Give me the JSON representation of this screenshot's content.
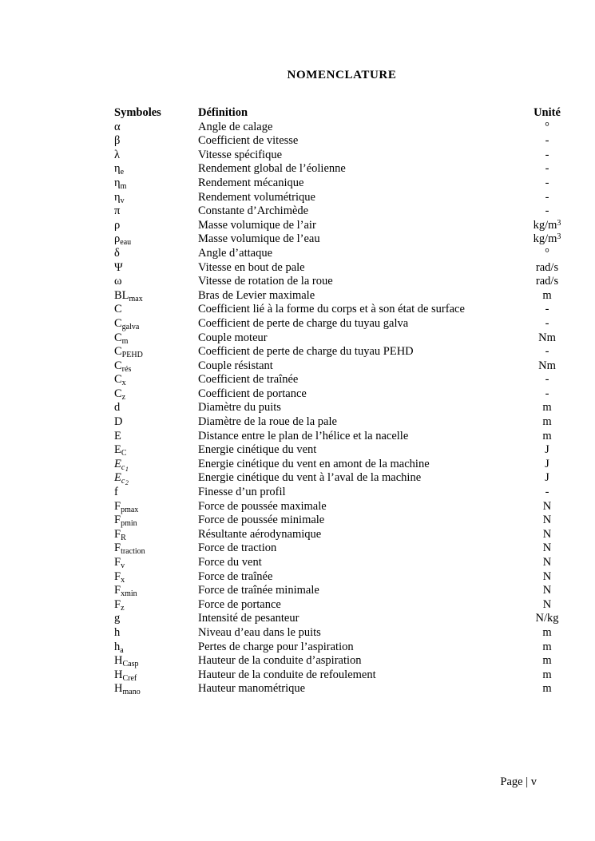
{
  "document": {
    "title": "NOMENCLATURE",
    "footer": "Page | v"
  },
  "table": {
    "headers": {
      "symbols": "Symboles",
      "definition": "Définition",
      "unit": "Unité"
    },
    "rows": [
      {
        "sym": "α",
        "def": "Angle de calage",
        "unit": "°"
      },
      {
        "sym": "β",
        "def": "Coefficient de vitesse",
        "unit": "-"
      },
      {
        "sym": "λ",
        "def": "Vitesse spécifique",
        "unit": "-"
      },
      {
        "sym": "η",
        "sub": "e",
        "def": "Rendement global de l’éolienne",
        "unit": "-"
      },
      {
        "sym": "η",
        "sub": "m",
        "def": "Rendement mécanique",
        "unit": "-"
      },
      {
        "sym": "η",
        "sub": "v",
        "def": "Rendement volumétrique",
        "unit": "-"
      },
      {
        "sym": "π",
        "def": "Constante d’Archimède",
        "unit": "-"
      },
      {
        "sym": "ρ",
        "def": "Masse volumique de l’air",
        "unit": "kg/m³"
      },
      {
        "sym": "ρ",
        "sub": "eau",
        "def": "Masse volumique de l’eau",
        "unit": "kg/m³"
      },
      {
        "sym": "δ",
        "def": "Angle d’attaque",
        "unit": "°"
      },
      {
        "sym": "Ψ",
        "def": "Vitesse en bout de pale",
        "unit": "rad/s"
      },
      {
        "sym": "ω",
        "def": "Vitesse de rotation de la roue",
        "unit": "rad/s"
      },
      {
        "sym": "BL",
        "sub": "max",
        "def": "Bras de Levier maximale",
        "unit": "m"
      },
      {
        "sym": "C",
        "def": "Coefficient lié à la forme du corps et à son état de surface",
        "unit": "-"
      },
      {
        "sym": "C",
        "sub": "galva",
        "def": "Coefficient de perte de charge du tuyau galva",
        "unit": "-"
      },
      {
        "sym": "C",
        "sub": "m",
        "def": "Couple moteur",
        "unit": "Nm"
      },
      {
        "sym": "C",
        "sub": "PEHD",
        "def": "Coefficient de perte de charge du tuyau PEHD",
        "unit": "-"
      },
      {
        "sym": "C",
        "sub": "rés",
        "def": "Couple résistant",
        "unit": "Nm"
      },
      {
        "sym": "C",
        "sub": "x",
        "def": "Coefficient de traînée",
        "unit": "-"
      },
      {
        "sym": "C",
        "sub": "z",
        "def": "Coefficient de portance",
        "unit": "-"
      },
      {
        "sym": "d",
        "def": "Diamètre du puits",
        "unit": "m"
      },
      {
        "sym": "D",
        "def": "Diamètre de la roue de la pale",
        "unit": "m"
      },
      {
        "sym": "E",
        "def": "Distance entre le plan de l’hélice et la nacelle",
        "unit": "m"
      },
      {
        "sym": "E",
        "sub": "C",
        "def": "Energie cinétique du vent",
        "unit": "J"
      },
      {
        "sym": "E",
        "sub": "c",
        "subsub": "1",
        "italic": true,
        "def": "Energie cinétique du vent en amont de la machine",
        "unit": "J"
      },
      {
        "sym": "E",
        "sub": "c",
        "subsub": "2",
        "italic": true,
        "def": "Energie cinétique du vent à l’aval de la machine",
        "unit": "J"
      },
      {
        "sym": "f",
        "def": "Finesse d’un profil",
        "unit": "-"
      },
      {
        "sym": "F",
        "sub": "pmax",
        "def": "Force de poussée maximale",
        "unit": "N"
      },
      {
        "sym": "F",
        "sub": "pmin",
        "def": "Force de poussée minimale",
        "unit": "N"
      },
      {
        "sym": "F",
        "sub": "R",
        "def": "Résultante aérodynamique",
        "unit": "N"
      },
      {
        "sym": "F",
        "sub": "traction",
        "def": "Force de traction",
        "unit": "N"
      },
      {
        "sym": "F",
        "sub": "v",
        "def": "Force du vent",
        "unit": "N"
      },
      {
        "sym": "F",
        "sub": "x",
        "def": "Force de traînée",
        "unit": "N"
      },
      {
        "sym": "F",
        "sub": "xmin",
        "def": "Force de traînée minimale",
        "unit": "N"
      },
      {
        "sym": "F",
        "sub": "z",
        "def": "Force de portance",
        "unit": "N"
      },
      {
        "sym": "g",
        "def": "Intensité de pesanteur",
        "unit": "N/kg"
      },
      {
        "sym": "h",
        "def": "Niveau d’eau dans le puits",
        "unit": "m"
      },
      {
        "sym": "h",
        "sub": "a",
        "def": "Pertes de charge pour l’aspiration",
        "unit": "m"
      },
      {
        "sym": "H",
        "sub": "Casp",
        "def": "Hauteur de la conduite d’aspiration",
        "unit": "m"
      },
      {
        "sym": "H",
        "sub": "Cref",
        "def": "Hauteur de la conduite de refoulement",
        "unit": "m"
      },
      {
        "sym": "H",
        "sub": "mano",
        "def": "Hauteur manométrique",
        "unit": "m"
      }
    ]
  }
}
